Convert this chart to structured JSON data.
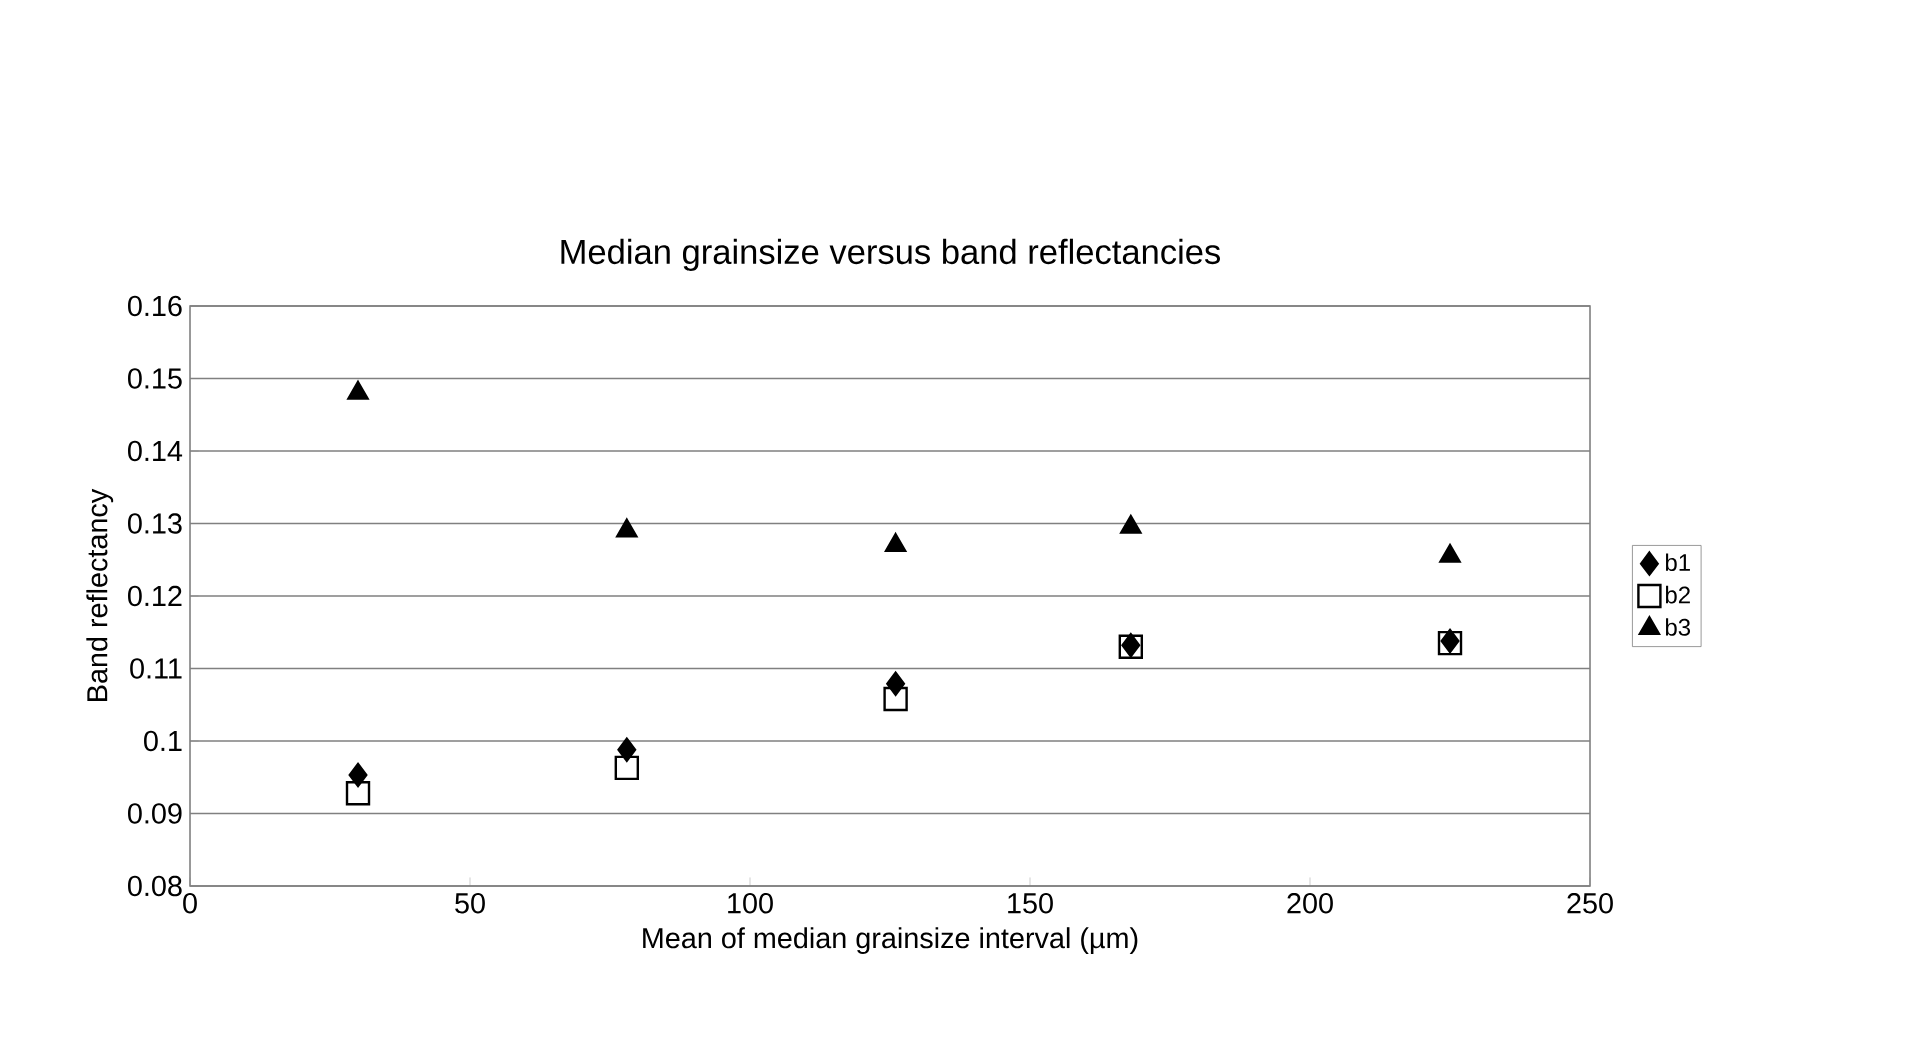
{
  "chart_data": {
    "type": "scatter",
    "title": "Median grainsize versus band reflectancies",
    "xlabel": "Mean of median grainsize interval (µm)",
    "ylabel": "Band reflectancy",
    "x": [
      30,
      78,
      126,
      168,
      225
    ],
    "series": [
      {
        "name": "b1",
        "color": "#000000",
        "marker": "diamond",
        "values": [
          0.0953,
          0.0988,
          0.1079,
          0.1132,
          0.1138
        ]
      },
      {
        "name": "b2",
        "color": "#000000",
        "marker": "square",
        "values": [
          0.0928,
          0.0963,
          0.1058,
          0.113,
          0.1135
        ]
      },
      {
        "name": "b3",
        "color": "#000000",
        "marker": "triangle",
        "values": [
          0.148,
          0.129,
          0.127,
          0.1295,
          0.1255
        ]
      }
    ],
    "xlim": [
      0,
      250
    ],
    "xticks": [
      0,
      50,
      100,
      150,
      200,
      250
    ],
    "ylim": [
      0.08,
      0.16
    ],
    "yticks": [
      {
        "value": 0.08,
        "label": "0.08"
      },
      {
        "value": 0.09,
        "label": "0.09"
      },
      {
        "value": 0.1,
        "label": "0.1"
      },
      {
        "value": 0.11,
        "label": "0.11"
      },
      {
        "value": 0.12,
        "label": "0.12"
      },
      {
        "value": 0.13,
        "label": "0.13"
      },
      {
        "value": 0.14,
        "label": "0.14"
      },
      {
        "value": 0.15,
        "label": "0.15"
      },
      {
        "value": 0.16,
        "label": "0.16"
      }
    ],
    "grid": "y",
    "legend": "right"
  }
}
